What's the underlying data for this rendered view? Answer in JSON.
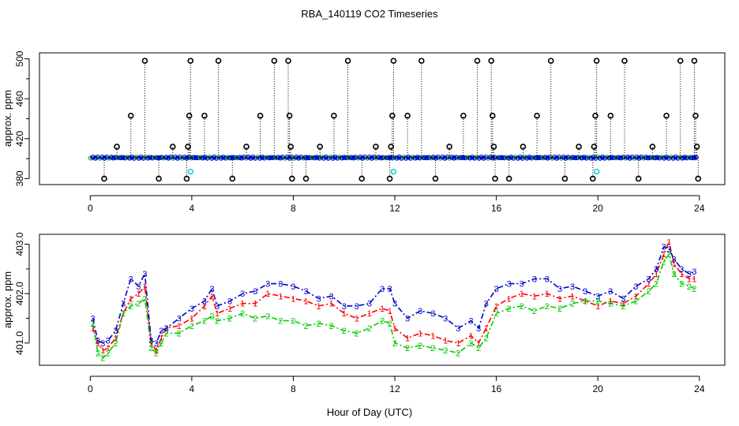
{
  "figure": {
    "title": "RBA_140119  CO2 Timeseries",
    "xlabel": "Hour of Day (UTC)"
  },
  "colors": {
    "r1": "#ff0000",
    "r2": "#00cc00",
    "r3": "#0000cc",
    "cyan": "#00cccc",
    "black": "#000000"
  },
  "chart_data": [
    {
      "type": "scatter",
      "panel": "top",
      "ylabel": "approx. ppm",
      "xlim": [
        -2,
        25
      ],
      "ylim": [
        374,
        506
      ],
      "xticks": [
        0,
        4,
        8,
        12,
        16,
        20,
        24
      ],
      "yticks": [
        380,
        420,
        460,
        500
      ],
      "baseline": 401,
      "outlier_values_ppm": [
        380,
        412,
        443,
        498
      ],
      "spikes": [
        {
          "x": 0.55,
          "y": 380
        },
        {
          "x": 1.05,
          "y": 412
        },
        {
          "x": 1.6,
          "y": 443
        },
        {
          "x": 2.15,
          "y": 498
        },
        {
          "x": 2.7,
          "y": 380
        },
        {
          "x": 3.25,
          "y": 412
        },
        {
          "x": 3.8,
          "y": 380
        },
        {
          "x": 3.85,
          "y": 412
        },
        {
          "x": 3.9,
          "y": 443
        },
        {
          "x": 3.95,
          "y": 498
        },
        {
          "x": 4.5,
          "y": 443
        },
        {
          "x": 5.05,
          "y": 498
        },
        {
          "x": 5.6,
          "y": 380
        },
        {
          "x": 6.15,
          "y": 412
        },
        {
          "x": 6.7,
          "y": 443
        },
        {
          "x": 7.25,
          "y": 498
        },
        {
          "x": 7.8,
          "y": 498
        },
        {
          "x": 7.85,
          "y": 443
        },
        {
          "x": 7.9,
          "y": 412
        },
        {
          "x": 7.95,
          "y": 380
        },
        {
          "x": 8.5,
          "y": 380
        },
        {
          "x": 9.05,
          "y": 412
        },
        {
          "x": 9.6,
          "y": 443
        },
        {
          "x": 10.15,
          "y": 498
        },
        {
          "x": 10.7,
          "y": 380
        },
        {
          "x": 11.25,
          "y": 412
        },
        {
          "x": 11.8,
          "y": 380
        },
        {
          "x": 11.85,
          "y": 412
        },
        {
          "x": 11.9,
          "y": 443
        },
        {
          "x": 11.95,
          "y": 498
        },
        {
          "x": 12.5,
          "y": 443
        },
        {
          "x": 13.05,
          "y": 498
        },
        {
          "x": 13.6,
          "y": 380
        },
        {
          "x": 14.15,
          "y": 412
        },
        {
          "x": 14.7,
          "y": 443
        },
        {
          "x": 15.25,
          "y": 498
        },
        {
          "x": 15.8,
          "y": 498
        },
        {
          "x": 15.85,
          "y": 443
        },
        {
          "x": 15.9,
          "y": 412
        },
        {
          "x": 15.95,
          "y": 380
        },
        {
          "x": 16.5,
          "y": 380
        },
        {
          "x": 17.05,
          "y": 412
        },
        {
          "x": 17.6,
          "y": 443
        },
        {
          "x": 18.15,
          "y": 498
        },
        {
          "x": 18.7,
          "y": 380
        },
        {
          "x": 19.25,
          "y": 412
        },
        {
          "x": 19.8,
          "y": 380
        },
        {
          "x": 19.85,
          "y": 412
        },
        {
          "x": 19.9,
          "y": 443
        },
        {
          "x": 19.95,
          "y": 498
        },
        {
          "x": 20.5,
          "y": 443
        },
        {
          "x": 21.05,
          "y": 498
        },
        {
          "x": 21.6,
          "y": 380
        },
        {
          "x": 22.15,
          "y": 412
        },
        {
          "x": 22.7,
          "y": 443
        },
        {
          "x": 23.25,
          "y": 498
        },
        {
          "x": 23.8,
          "y": 498
        },
        {
          "x": 23.85,
          "y": 443
        },
        {
          "x": 23.9,
          "y": 412
        },
        {
          "x": 23.95,
          "y": 380
        }
      ],
      "cyan_points": [
        {
          "x": 3.95,
          "y": 387
        },
        {
          "x": 11.95,
          "y": 387
        },
        {
          "x": 19.95,
          "y": 387
        }
      ]
    },
    {
      "type": "line",
      "panel": "bottom",
      "ylabel": "approx. ppm",
      "xlim": [
        -2,
        25
      ],
      "ylim": [
        400.55,
        403.2
      ],
      "xticks": [
        0,
        4,
        8,
        12,
        16,
        20,
        24
      ],
      "yticks": [
        401.0,
        402.0,
        403.0
      ],
      "ytick_labels": [
        "401.0",
        "402.0",
        "403.0"
      ],
      "x": [
        0.1,
        0.3,
        0.5,
        0.7,
        1.0,
        1.3,
        1.6,
        1.9,
        2.15,
        2.4,
        2.6,
        2.8,
        3.0,
        3.5,
        4.0,
        4.5,
        4.8,
        5.0,
        5.5,
        6.0,
        6.5,
        7.0,
        7.5,
        8.0,
        8.5,
        9.0,
        9.5,
        10.0,
        10.5,
        11.0,
        11.5,
        11.8,
        12.0,
        12.5,
        13.0,
        13.5,
        14.0,
        14.5,
        15.0,
        15.3,
        15.6,
        16.0,
        16.5,
        17.0,
        17.5,
        18.0,
        18.5,
        19.0,
        19.5,
        20.0,
        20.5,
        21.0,
        21.5,
        22.0,
        22.3,
        22.6,
        22.8,
        23.0,
        23.3,
        23.6,
        23.8
      ],
      "series": [
        {
          "name": "1",
          "glyph": "1",
          "color": "#ff0000",
          "values": [
            401.3,
            401.0,
            400.85,
            400.9,
            401.1,
            401.6,
            401.9,
            402.0,
            402.15,
            401.0,
            400.85,
            401.1,
            401.3,
            401.35,
            401.5,
            401.75,
            401.95,
            401.6,
            401.7,
            401.8,
            401.8,
            402.0,
            401.95,
            401.9,
            401.85,
            401.75,
            401.8,
            401.6,
            401.5,
            401.6,
            401.7,
            401.65,
            401.3,
            401.1,
            401.2,
            401.15,
            401.05,
            401.0,
            401.15,
            401.0,
            401.3,
            401.75,
            401.9,
            402.0,
            401.95,
            402.0,
            401.9,
            401.95,
            401.85,
            401.75,
            401.85,
            401.8,
            401.95,
            402.2,
            402.4,
            402.8,
            403.05,
            402.6,
            402.4,
            402.3,
            402.3
          ]
        },
        {
          "name": "2",
          "glyph": "2",
          "color": "#00cc00",
          "values": [
            401.4,
            400.8,
            400.7,
            400.8,
            401.0,
            401.6,
            401.75,
            401.8,
            401.9,
            400.9,
            400.8,
            401.0,
            401.2,
            401.2,
            401.35,
            401.45,
            401.55,
            401.45,
            401.5,
            401.6,
            401.5,
            401.55,
            401.45,
            401.45,
            401.35,
            401.4,
            401.35,
            401.25,
            401.2,
            401.3,
            401.45,
            401.4,
            401.0,
            400.9,
            400.95,
            400.9,
            400.85,
            400.8,
            401.0,
            400.9,
            401.1,
            401.6,
            401.7,
            401.75,
            401.65,
            401.75,
            401.7,
            401.8,
            401.85,
            401.85,
            401.8,
            401.75,
            401.85,
            402.05,
            402.2,
            402.65,
            402.8,
            402.4,
            402.2,
            402.15,
            402.1
          ]
        },
        {
          "name": "3",
          "glyph": "3",
          "color": "#0000cc",
          "values": [
            401.5,
            401.05,
            401.0,
            401.05,
            401.25,
            401.8,
            402.3,
            402.15,
            402.4,
            401.05,
            401.0,
            401.25,
            401.3,
            401.5,
            401.7,
            401.85,
            402.1,
            401.75,
            401.85,
            402.0,
            402.05,
            402.2,
            402.2,
            402.15,
            402.05,
            401.9,
            401.95,
            401.75,
            401.75,
            401.8,
            402.1,
            402.1,
            401.8,
            401.5,
            401.65,
            401.6,
            401.5,
            401.3,
            401.45,
            401.3,
            401.8,
            402.1,
            402.2,
            402.2,
            402.3,
            402.3,
            402.1,
            402.15,
            402.05,
            401.95,
            402.05,
            401.9,
            402.15,
            402.3,
            402.5,
            402.95,
            402.9,
            402.7,
            402.5,
            402.4,
            402.45
          ]
        }
      ]
    }
  ]
}
